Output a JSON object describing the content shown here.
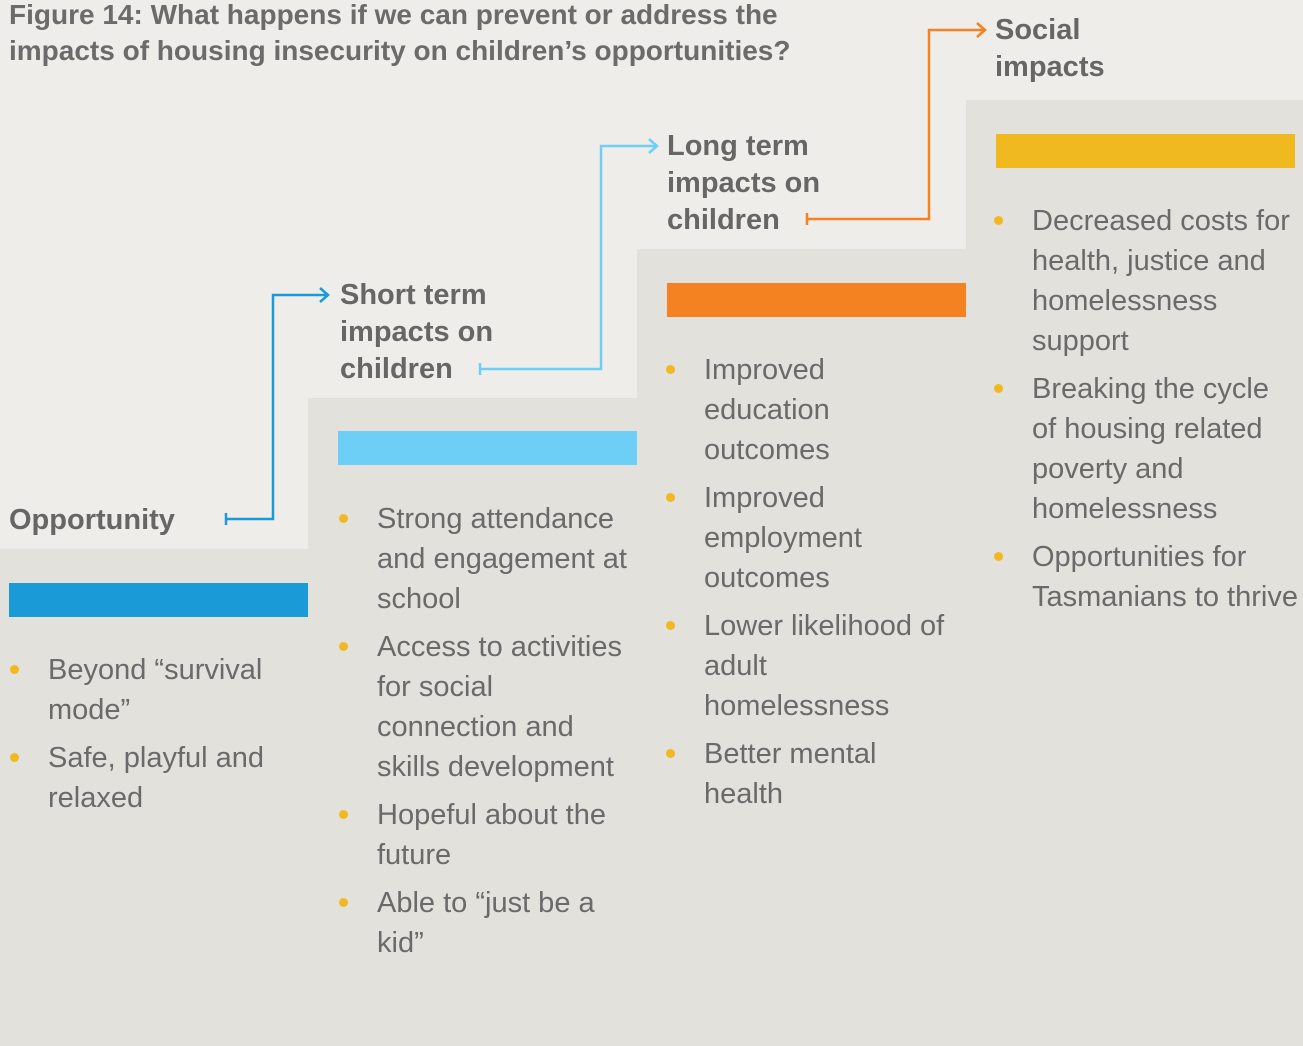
{
  "title": [
    "Figure 14: What happens if we can prevent or address the",
    "impacts of housing insecurity on children’s opportunities?"
  ],
  "columns": [
    {
      "heading": [
        "Opportunity"
      ],
      "items": [
        "Beyond “survival mode”",
        "Safe, playful and relaxed"
      ]
    },
    {
      "heading": [
        "Short term",
        "impacts on",
        "children"
      ],
      "items": [
        "Strong attendance and engagement at school",
        "Access to activities for social connection and skills development",
        "Hopeful about the future",
        "Able to “just be a kid”"
      ]
    },
    {
      "heading": [
        "Long term",
        "impacts on",
        "children"
      ],
      "items": [
        "Improved education outcomes",
        "Improved employment outcomes",
        "Lower likelihood of adult homelessness",
        "Better mental health"
      ]
    },
    {
      "heading": [
        "Social",
        "impacts"
      ],
      "items": [
        "Decreased costs for health, justice and homelessness support",
        "Breaking the cycle of housing related poverty and homelessness",
        "Opportunities for Tasmanians to thrive"
      ]
    }
  ]
}
